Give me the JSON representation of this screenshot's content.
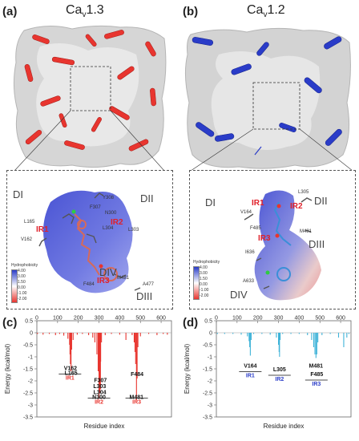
{
  "panels": {
    "a": {
      "letter": "(a)",
      "title": "Cav1.3",
      "title_main": "Ca",
      "title_sub": "v",
      "title_tail": "1.3"
    },
    "b": {
      "letter": "(b)",
      "title": "Cav1.2",
      "title_main": "Ca",
      "title_sub": "v",
      "title_tail": "1.2"
    },
    "c": {
      "letter": "(c)"
    },
    "d": {
      "letter": "(d)"
    }
  },
  "zoom_a": {
    "domains": [
      "DI",
      "DII",
      "DIII",
      "DIV"
    ],
    "residues": [
      "Y308",
      "N300",
      "F307",
      "L303",
      "L165",
      "V162",
      "L304",
      "F484",
      "M481",
      "A477"
    ],
    "ir_labels": [
      "IR1",
      "IR2",
      "IR3"
    ]
  },
  "zoom_b": {
    "domains": [
      "DI",
      "DII",
      "DIII",
      "DIV"
    ],
    "residues": [
      "L305",
      "V164",
      "F485",
      "M481",
      "I636",
      "A633"
    ],
    "ir_labels": [
      "IR1",
      "IR2",
      "IR3"
    ]
  },
  "hydrophobicity": {
    "title": "Hydrophobicity",
    "ticks": [
      "4.00",
      "3.00",
      "1.50",
      "0.00",
      "-1.00",
      "-2.00"
    ]
  },
  "colors": {
    "cav13": "#e8352f",
    "cav12": "#2a3cc8",
    "bar_d": "#3fb3d8",
    "surface": "#d9d9d9"
  },
  "chart_data": [
    {
      "type": "bar",
      "panel": "(c)",
      "xlabel": "Residue index",
      "ylabel": "Energy (kcal/mol)",
      "xlim": [
        0,
        650
      ],
      "ylim": [
        -3.5,
        0.5
      ],
      "xticks": [
        "0",
        "100",
        "200",
        "300",
        "400",
        "500",
        "600"
      ],
      "yticks": [
        "0.5",
        "0",
        "-0.5",
        "-1",
        "-1.5",
        "-2",
        "-2.5",
        "-3",
        "-3.5"
      ],
      "color": "#e8352f",
      "x": [
        3,
        30,
        60,
        90,
        110,
        130,
        150,
        158,
        160,
        162,
        165,
        168,
        175,
        195,
        220,
        250,
        270,
        280,
        290,
        296,
        300,
        303,
        304,
        307,
        308,
        312,
        330,
        360,
        400,
        430,
        460,
        470,
        474,
        477,
        481,
        484,
        488,
        500,
        540,
        580,
        610,
        630
      ],
      "values": [
        -0.05,
        -0.08,
        -0.05,
        -0.1,
        -0.05,
        -0.12,
        -0.25,
        -0.5,
        -0.9,
        -1.3,
        -1.6,
        -0.7,
        -0.3,
        -0.08,
        -0.05,
        -0.1,
        -0.2,
        -0.4,
        -0.9,
        -1.6,
        -2.75,
        -2.1,
        -2.5,
        -2.35,
        -1.2,
        -0.4,
        -0.1,
        -0.05,
        -0.08,
        -0.3,
        -0.1,
        -0.4,
        -0.8,
        -1.3,
        -2.8,
        -1.9,
        -0.6,
        -0.15,
        -0.05,
        -0.1,
        -0.05,
        -0.08
      ],
      "annotations": [
        {
          "text": "V162",
          "x": 162,
          "y": -1.55
        },
        {
          "text": "L165",
          "x": 165,
          "y": -1.75
        },
        {
          "text": "L303",
          "x": 303,
          "y": -2.3
        },
        {
          "text": "F307",
          "x": 307,
          "y": -2.05
        },
        {
          "text": "L304",
          "x": 304,
          "y": -2.55
        },
        {
          "text": "N300",
          "x": 300,
          "y": -2.75
        },
        {
          "text": "F484",
          "x": 484,
          "y": -1.8
        },
        {
          "text": "M481",
          "x": 481,
          "y": -2.75
        }
      ],
      "groups": [
        {
          "text": "IR1",
          "x": 160,
          "y": -1.95
        },
        {
          "text": "IR2",
          "x": 300,
          "y": -2.95
        },
        {
          "text": "IR3",
          "x": 482,
          "y": -2.95
        }
      ]
    },
    {
      "type": "bar",
      "panel": "(d)",
      "xlabel": "Residue index",
      "ylabel": "Energy (kcal/mol)",
      "xlim": [
        0,
        650
      ],
      "ylim": [
        -3.5,
        0.5
      ],
      "xticks": [
        "0",
        "100",
        "200",
        "300",
        "400",
        "500",
        "600"
      ],
      "yticks": [
        "0.5",
        "0",
        "-0.5",
        "-1",
        "-1.5",
        "-2",
        "-2.5",
        "-3",
        "-3.5"
      ],
      "color": "#3fb3d8",
      "x": [
        5,
        40,
        80,
        120,
        150,
        158,
        161,
        164,
        168,
        180,
        220,
        260,
        290,
        300,
        303,
        305,
        308,
        320,
        360,
        400,
        440,
        460,
        470,
        476,
        481,
        485,
        490,
        510,
        550,
        590,
        615,
        630,
        640
      ],
      "values": [
        -0.05,
        -0.05,
        -0.05,
        -0.08,
        -0.15,
        -0.35,
        -0.6,
        -0.95,
        -0.3,
        -0.05,
        -0.05,
        -0.08,
        -0.2,
        -0.5,
        -0.8,
        -1.0,
        -0.3,
        -0.05,
        -0.05,
        -0.05,
        -0.1,
        -0.3,
        -0.6,
        -0.9,
        -1.05,
        -0.9,
        -0.4,
        -0.1,
        -0.05,
        -0.2,
        -0.6,
        -0.2,
        -0.05
      ],
      "annotations": [
        {
          "text": "V164",
          "x": 164,
          "y": -1.45
        },
        {
          "text": "L305",
          "x": 305,
          "y": -1.6
        },
        {
          "text": "M481",
          "x": 481,
          "y": -1.45
        },
        {
          "text": "F485",
          "x": 485,
          "y": -1.8
        }
      ],
      "groups": [
        {
          "text": "IR1",
          "x": 164,
          "y": -1.85
        },
        {
          "text": "IR2",
          "x": 305,
          "y": -2.0
        },
        {
          "text": "IR3",
          "x": 483,
          "y": -2.2
        }
      ]
    }
  ]
}
